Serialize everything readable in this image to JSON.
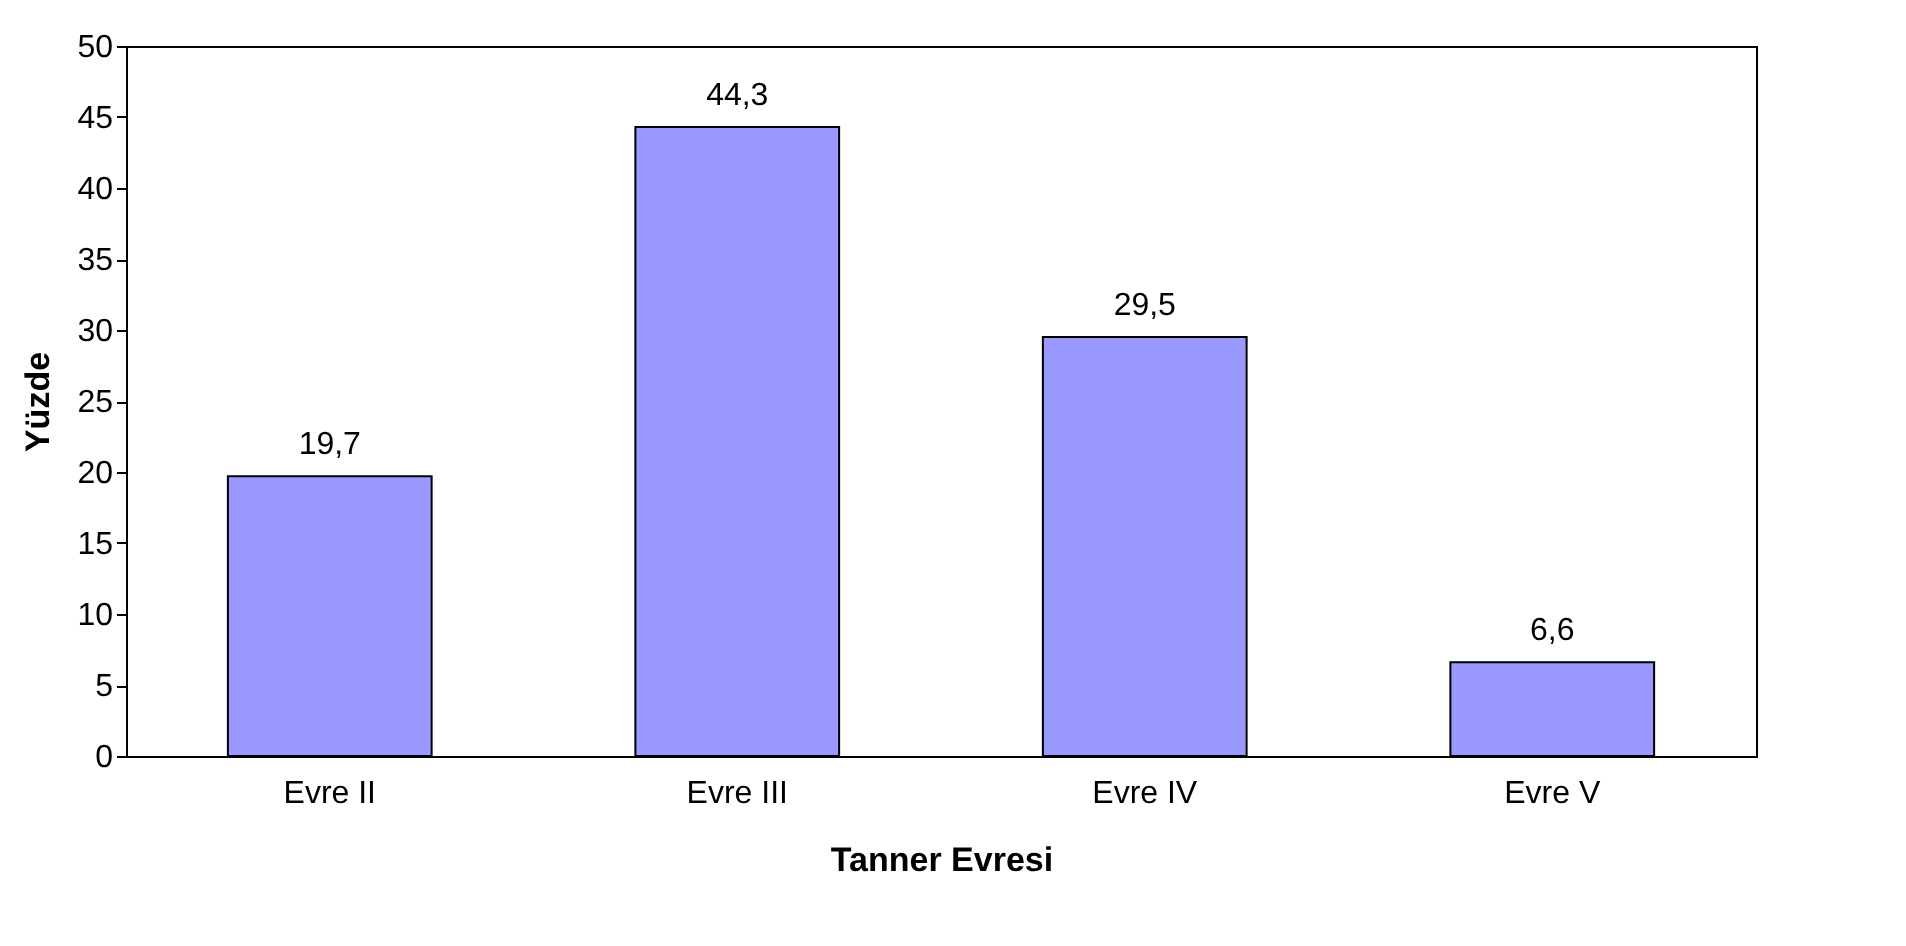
{
  "chart_data": {
    "type": "bar",
    "xlabel": "Tanner Evresi",
    "ylabel": "Yüzde",
    "categories": [
      "Evre II",
      "Evre III",
      "Evre IV",
      "Evre V"
    ],
    "values": [
      19.7,
      44.3,
      29.5,
      6.6
    ],
    "value_labels": [
      "19,7",
      "44,3",
      "29,5",
      "6,6"
    ],
    "color": "#9999ff",
    "ylim": [
      0,
      50
    ],
    "yticks": [
      0,
      5,
      10,
      15,
      20,
      25,
      30,
      35,
      40,
      45,
      50
    ],
    "grid": false
  }
}
